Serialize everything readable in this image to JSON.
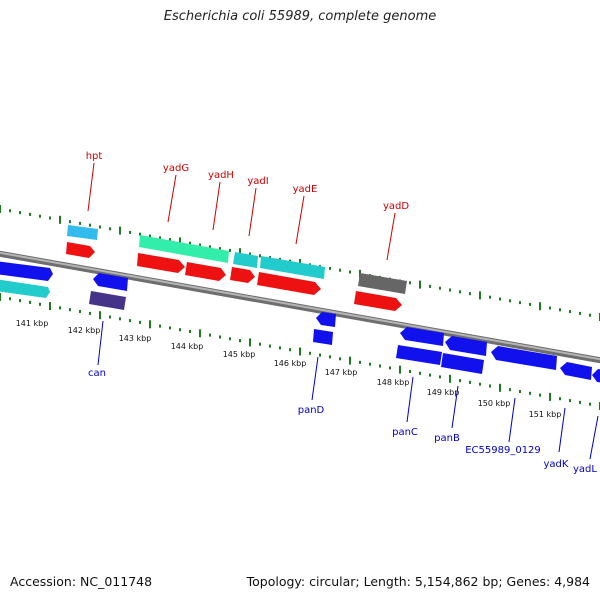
{
  "map": {
    "title": "Escherichia coli 55989, complete genome",
    "footer": {
      "accession": "Accession: NC_011748",
      "summary": "Topology: circular; Length: 5,154,862 bp; Genes: 4,984"
    }
  },
  "colors": {
    "backbone": "#8a8a8a",
    "tick_marks": "#1e7a1e",
    "forward_label": "#cc0000",
    "reverse_label": "#0000cc",
    "red_feature": "#ee1111",
    "blue_feature": "#1111ee",
    "cyan_feature": "#22cccc",
    "light_blue_feature": "#33bbee",
    "mint_feature": "#33eeaa",
    "gray_feature": "#666666",
    "dark_navy_feature": "#443388"
  },
  "ruler": {
    "labels": [
      "141 kbp",
      "142 kbp",
      "143 kbp",
      "144 kbp",
      "145 kbp",
      "146 kbp",
      "147 kbp",
      "148 kbp",
      "149 kbp",
      "150 kbp",
      "151 kbp"
    ]
  },
  "gene_labels": {
    "forward": [
      "hpt",
      "yadG",
      "yadH",
      "yadI",
      "yadE",
      "yadD"
    ],
    "reverse": [
      "can",
      "panD",
      "panC",
      "panB",
      "EC55989_0129",
      "yadK",
      "yadL"
    ]
  }
}
